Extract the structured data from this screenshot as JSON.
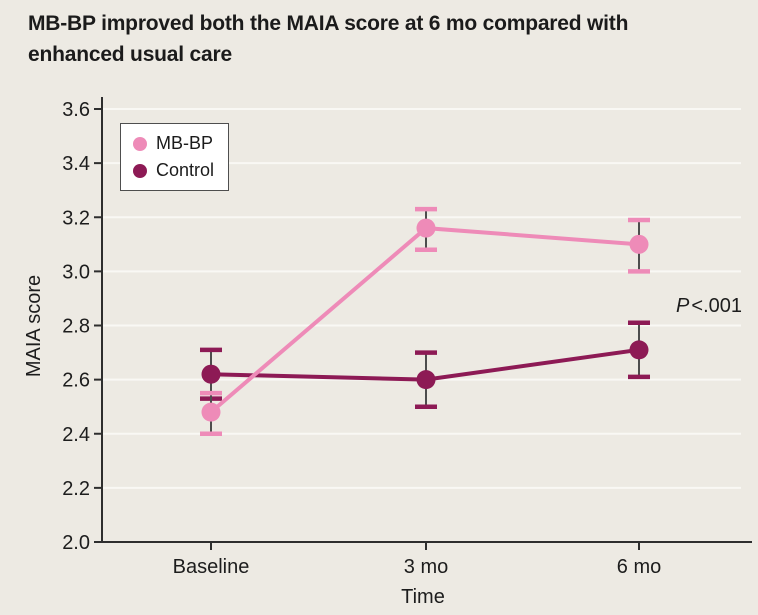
{
  "chart_data": {
    "type": "line",
    "title": "MB-BP improved both the MAIA score at 6 mo compared with enhanced usual care",
    "categories": [
      "Baseline",
      "3 mo",
      "6 mo"
    ],
    "xlabel": "Time",
    "ylabel": "MAIA score",
    "ylim": [
      2.0,
      3.6
    ],
    "ytick_step": 0.2,
    "ytick_labels": [
      "2.0",
      "2.2",
      "2.4",
      "2.6",
      "2.8",
      "3.0",
      "3.2",
      "3.4",
      "3.6"
    ],
    "grid": true,
    "legend_position": "top-left",
    "series": [
      {
        "name": "MB-BP",
        "color": "#ee8bb8",
        "values": [
          2.48,
          3.16,
          3.1
        ],
        "ci_low": [
          2.4,
          3.08,
          3.0
        ],
        "ci_high": [
          2.55,
          3.23,
          3.19
        ]
      },
      {
        "name": "Control",
        "color": "#8d1a55",
        "values": [
          2.62,
          2.6,
          2.71
        ],
        "ci_low": [
          2.53,
          2.5,
          2.61
        ],
        "ci_high": [
          2.71,
          2.7,
          2.81
        ]
      }
    ],
    "annotation": {
      "italic": "P",
      "text": "<.001"
    },
    "colors": {
      "background": "#edeae3",
      "grid": "#f9f8f4",
      "axis": "#2e2e2e",
      "text": "#1d1d1d",
      "error_bar": "#4d4d4d",
      "legend_border": "#4e4e4e",
      "legend_background": "#ffffff"
    }
  }
}
